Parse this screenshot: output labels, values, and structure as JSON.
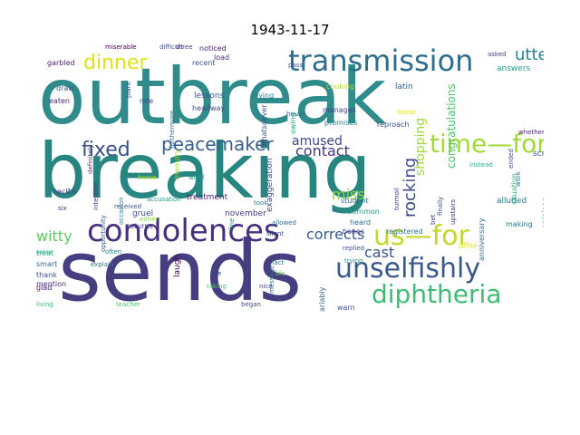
{
  "title": "1943-11-17",
  "words": [
    {
      "text": "outbreak",
      "color": "#2f8c8b"
    },
    {
      "text": "breaking",
      "color": "#27867f"
    },
    {
      "text": "sends",
      "color": "#453f82"
    },
    {
      "text": "transmission",
      "color": "#2d6e8e"
    },
    {
      "text": "condolences",
      "color": "#472f7d"
    },
    {
      "text": "unselfishly",
      "color": "#3b5a8c"
    },
    {
      "text": "diphtheria",
      "color": "#3fbc73"
    },
    {
      "text": "us—for",
      "color": "#c5d72a"
    },
    {
      "text": "time—for",
      "color": "#a2da37"
    },
    {
      "text": "peacemaker",
      "color": "#35608d"
    },
    {
      "text": "fixed",
      "color": "#3b518b"
    },
    {
      "text": "dinner",
      "color": "#dde318"
    },
    {
      "text": "utter",
      "color": "#25838e"
    },
    {
      "text": "amused",
      "color": "#404387"
    },
    {
      "text": "contact",
      "color": "#443983"
    },
    {
      "text": "corrects",
      "color": "#375a8c"
    },
    {
      "text": "rocking",
      "color": "#3e4a89"
    },
    {
      "text": "witty",
      "color": "#5dc963"
    },
    {
      "text": "miss",
      "color": "#8bd646"
    },
    {
      "text": "cast",
      "color": "#3a538b"
    },
    {
      "text": "shopping",
      "color": "#a0da39"
    },
    {
      "text": "congratulations",
      "color": "#4ec36b"
    },
    {
      "text": "started",
      "color": "#404688"
    },
    {
      "text": "foundations",
      "color": "#3c4f8a"
    },
    {
      "text": "sixteenth",
      "color": "#2a778e"
    },
    {
      "text": "events",
      "color": "#482878"
    },
    {
      "text": "warn",
      "color": "#3a548c"
    },
    {
      "text": "invariably",
      "color": "#31688e"
    },
    {
      "text": "registered",
      "color": "#2d708e"
    },
    {
      "text": "bones",
      "color": "#443a83"
    },
    {
      "text": "alluded",
      "color": "#2c728e"
    },
    {
      "text": "treatment",
      "color": "#482173"
    },
    {
      "text": "gruel",
      "color": "#3d4e8a"
    },
    {
      "text": "returns",
      "color": "#414487"
    },
    {
      "text": "exchange",
      "color": "#3f4889"
    },
    {
      "text": "date",
      "color": "#46327e"
    },
    {
      "text": "lessons",
      "color": "#39558c"
    },
    {
      "text": "headway",
      "color": "#3f4788"
    },
    {
      "text": "promises",
      "color": "#26828e"
    },
    {
      "text": "manages",
      "color": "#424086"
    },
    {
      "text": "cooking",
      "color": "#b5de2b"
    },
    {
      "text": "loose",
      "color": "#e5e419"
    },
    {
      "text": "screw",
      "color": "#3b528b"
    },
    {
      "text": "answers",
      "color": "#1f9e89"
    },
    {
      "text": "student",
      "color": "#2e6f8e"
    },
    {
      "text": "common",
      "color": "#1f978b"
    },
    {
      "text": "heard",
      "color": "#2e6e8e"
    },
    {
      "text": "reproach",
      "color": "#3e4c8a"
    },
    {
      "text": "latin",
      "color": "#31668e"
    },
    {
      "text": "saying",
      "color": "#277f8e"
    },
    {
      "text": "recent",
      "color": "#3b528b"
    },
    {
      "text": "noticed",
      "color": "#48186a"
    },
    {
      "text": "load",
      "color": "#472d7b"
    },
    {
      "text": "role",
      "color": "#3e4989"
    },
    {
      "text": "draw",
      "color": "#38598c"
    },
    {
      "text": "eaten",
      "color": "#482475"
    },
    {
      "text": "garbled",
      "color": "#481b6d"
    },
    {
      "text": "neck",
      "color": "#424186"
    },
    {
      "text": "treat",
      "color": "#27ad81"
    },
    {
      "text": "smart",
      "color": "#31678e"
    },
    {
      "text": "glad",
      "color": "#48196b"
    },
    {
      "text": "thank",
      "color": "#3b528b"
    },
    {
      "text": "mention",
      "color": "#472e7c"
    },
    {
      "text": "living",
      "color": "#3bbb75"
    },
    {
      "text": "sense",
      "color": "#20a386"
    },
    {
      "text": "explain",
      "color": "#2a788e"
    },
    {
      "text": "teacher",
      "color": "#4ac16d"
    },
    {
      "text": "laugh",
      "color": "#440154"
    },
    {
      "text": "november",
      "color": "#453882"
    },
    {
      "text": "honor",
      "color": "#a8db34"
    },
    {
      "text": "word",
      "color": "#1f988b"
    },
    {
      "text": "took",
      "color": "#2b748e"
    },
    {
      "text": "allowed",
      "color": "#2c718e"
    },
    {
      "text": "silent",
      "color": "#3e4a89"
    },
    {
      "text": "fine",
      "color": "#24868e"
    },
    {
      "text": "use",
      "color": "#3d4d8a"
    },
    {
      "text": "taking",
      "color": "#56c667"
    },
    {
      "text": "began",
      "color": "#3e4989"
    },
    {
      "text": "trying",
      "color": "#21918c"
    },
    {
      "text": "replied",
      "color": "#3a548c"
    },
    {
      "text": "offer",
      "color": "#e7e419"
    },
    {
      "text": "making",
      "color": "#2a768e"
    },
    {
      "text": "opinions",
      "color": "#1e9b8a"
    },
    {
      "text": "anniversary",
      "color": "#2e6d8e"
    },
    {
      "text": "turmoil",
      "color": "#472c7a"
    },
    {
      "text": "finally",
      "color": "#3d4e8a"
    },
    {
      "text": "bet",
      "color": "#424186"
    },
    {
      "text": "upstairs",
      "color": "#46307e"
    },
    {
      "text": "instead",
      "color": "#2ab07f"
    },
    {
      "text": "ended",
      "color": "#3e4b8a"
    },
    {
      "text": "situation",
      "color": "#32b67a"
    },
    {
      "text": "whether",
      "color": "#482576"
    },
    {
      "text": "work",
      "color": "#2d718e"
    },
    {
      "text": "exaggeration",
      "color": "#3f4889"
    },
    {
      "text": "whatsoever",
      "color": "#3b528b"
    },
    {
      "text": "accusation",
      "color": "#1f948c"
    },
    {
      "text": "occasion",
      "color": "#2a778e"
    },
    {
      "text": "opportunity",
      "color": "#3a548c"
    },
    {
      "text": "intention",
      "color": "#46337f"
    },
    {
      "text": "definitely",
      "color": "#453781"
    },
    {
      "text": "furthermore",
      "color": "#2c718e"
    },
    {
      "text": "memory",
      "color": "#9bd93c"
    },
    {
      "text": "owing",
      "color": "#21a685"
    },
    {
      "text": "pass",
      "color": "#3c508b"
    },
    {
      "text": "house",
      "color": "#33638d"
    },
    {
      "text": "plant",
      "color": "#3e4989"
    },
    {
      "text": "difficult",
      "color": "#3d4d8a"
    },
    {
      "text": "three",
      "color": "#433e85"
    },
    {
      "text": "miserable",
      "color": "#440154"
    },
    {
      "text": "asked",
      "color": "#424086"
    },
    {
      "text": "received",
      "color": "#3c4f8a"
    },
    {
      "text": "either",
      "color": "#8bd646"
    },
    {
      "text": "often",
      "color": "#2a778e"
    },
    {
      "text": "fact",
      "color": "#2a768e"
    },
    {
      "text": "life",
      "color": "#7cd250"
    },
    {
      "text": "message",
      "color": "#2e6d8e"
    },
    {
      "text": "nice",
      "color": "#453781"
    },
    {
      "text": "six",
      "color": "#46327e"
    },
    {
      "text": "16",
      "color": "#3b528b"
    }
  ]
}
